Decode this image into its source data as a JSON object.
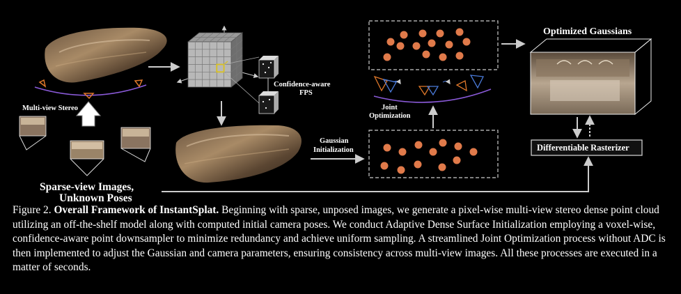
{
  "figure": {
    "labels": {
      "multi_view_stereo": "Multi-view Stereo",
      "sparse_view_line1": "Sparse-view Images,",
      "sparse_view_line2": "Unknown Poses",
      "confidence_line1": "Confidence-aware",
      "confidence_line2": "FPS",
      "gaussian_init_line1": "Gaussian",
      "gaussian_init_line2": "Initialization",
      "joint_opt_line1": "Joint",
      "joint_opt_line2": "Optimization",
      "optimized_gaussians": "Optimized Gaussians",
      "differentiable_rasterizer": "Differentiable Rasterizer"
    },
    "colors": {
      "background": "#000000",
      "gaussian_dot": "#e07a4a",
      "arrow": "#cccccc",
      "camera_orange": "#e0782a",
      "camera_blue": "#4a7ad8",
      "arc_purple": "#8a5ad8",
      "highlight_voxel": "#d8c020"
    }
  },
  "caption": {
    "label": "Figure 2.",
    "title": "Overall Framework of InstantSplat.",
    "body": "Beginning with sparse, unposed images, we generate a pixel-wise multi-view stereo dense point cloud utilizing an off-the-shelf model along with computed initial camera poses. We conduct Adaptive Dense Surface Initialization employing a voxel-wise, confidence-aware point downsampler to minimize redundancy and achieve uniform sampling.  A streamlined Joint Optimization process without ADC is then implemented to adjust the Gaussian and camera parameters, ensuring consistency across multi-view images. All these processes are executed in a matter of seconds."
  }
}
